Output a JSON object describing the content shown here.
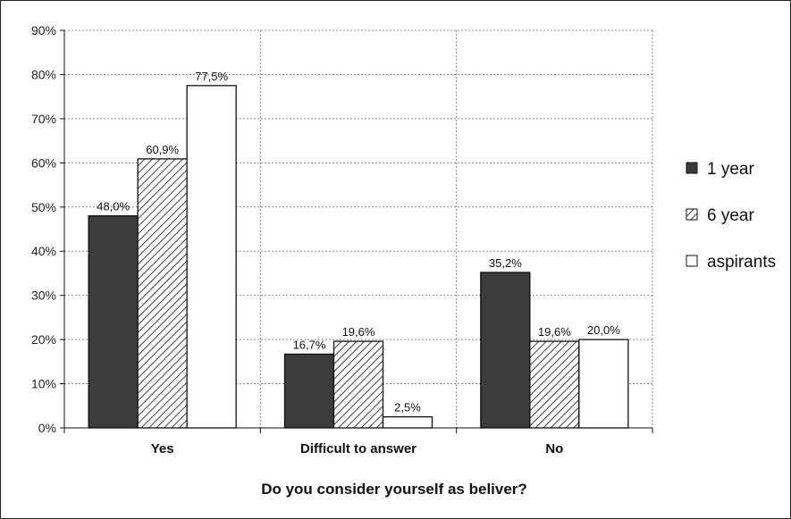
{
  "chart_data": {
    "type": "bar",
    "title": "",
    "xlabel": "Do you consider yourself as beliver?",
    "ylabel": "",
    "categories": [
      "Yes",
      "Difficult to answer",
      "No"
    ],
    "series": [
      {
        "name": "1 year",
        "values": [
          48.0,
          16.7,
          35.2
        ],
        "labels": [
          "48,0%",
          "16,7%",
          "35,2%"
        ],
        "fill": "dark"
      },
      {
        "name": "6 year",
        "values": [
          60.9,
          19.6,
          19.6
        ],
        "labels": [
          "60,9%",
          "19,6%",
          "19,6%"
        ],
        "fill": "hatched"
      },
      {
        "name": "aspirants",
        "values": [
          77.5,
          2.5,
          20.0
        ],
        "labels": [
          "77,5%",
          "2,5%",
          "20,0%"
        ],
        "fill": "white"
      }
    ],
    "ylim": [
      0,
      90
    ],
    "yticks": [
      "0%",
      "10%",
      "20%",
      "30%",
      "40%",
      "50%",
      "60%",
      "70%",
      "80%",
      "90%"
    ],
    "grid": true,
    "legend_position": "right",
    "colors": {
      "dark": "#3c3c3c",
      "white": "#ffffff",
      "stroke": "#111111",
      "grid": "#8a8a8a"
    }
  }
}
